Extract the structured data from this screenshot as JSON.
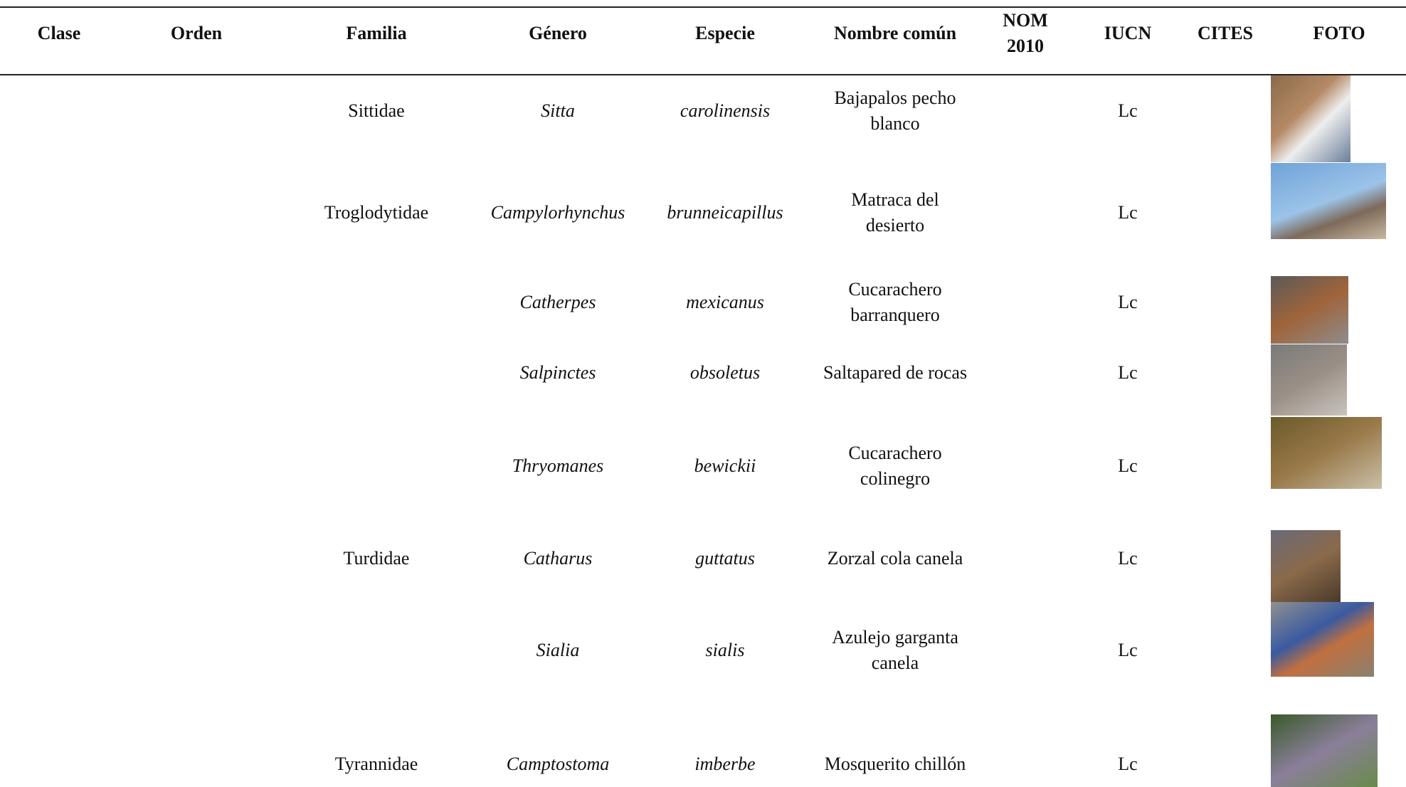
{
  "header": {
    "columns": {
      "clase": "Clase",
      "orden": "Orden",
      "familia": "Familia",
      "genero": "Género",
      "especie": "Especie",
      "nombre_comun": "Nombre común",
      "nom": [
        "NOM",
        "2010"
      ],
      "iucn": "IUCN",
      "cites": "CITES",
      "foto": "FOTO"
    }
  },
  "table": {
    "rows": [
      {
        "familia": "Sittidae",
        "genero": "Sitta",
        "especie": "carolinensis",
        "nombre_comun": [
          "Bajapalos pecho",
          "blanco"
        ],
        "iucn": "Lc"
      },
      {
        "familia": "Troglodytidae",
        "genero": "Campylorhynchus",
        "especie": "brunneicapillus",
        "nombre_comun": [
          "Matraca del",
          "desierto"
        ],
        "iucn": "Lc"
      },
      {
        "genero": "Catherpes",
        "especie": "mexicanus",
        "nombre_comun": [
          "Cucarachero",
          "barranquero"
        ],
        "iucn": "Lc"
      },
      {
        "genero": "Salpinctes",
        "especie": "obsoletus",
        "nombre_comun": [
          "Saltapared de rocas"
        ],
        "iucn": "Lc"
      },
      {
        "genero": "Thryomanes",
        "especie": "bewickii",
        "nombre_comun": [
          "Cucarachero",
          "colinegro"
        ],
        "iucn": "Lc"
      },
      {
        "familia": "Turdidae",
        "genero": "Catharus",
        "especie": "guttatus",
        "nombre_comun": [
          "Zorzal cola canela"
        ],
        "iucn": "Lc"
      },
      {
        "genero": "Sialia",
        "especie": "sialis",
        "nombre_comun": [
          "Azulejo garganta",
          "canela"
        ],
        "iucn": "Lc"
      },
      {
        "familia": "Tyrannidae",
        "genero": "Camptostoma",
        "especie": "imberbe",
        "nombre_comun": [
          "Mosquerito chillón"
        ],
        "iucn": "Lc"
      }
    ]
  }
}
